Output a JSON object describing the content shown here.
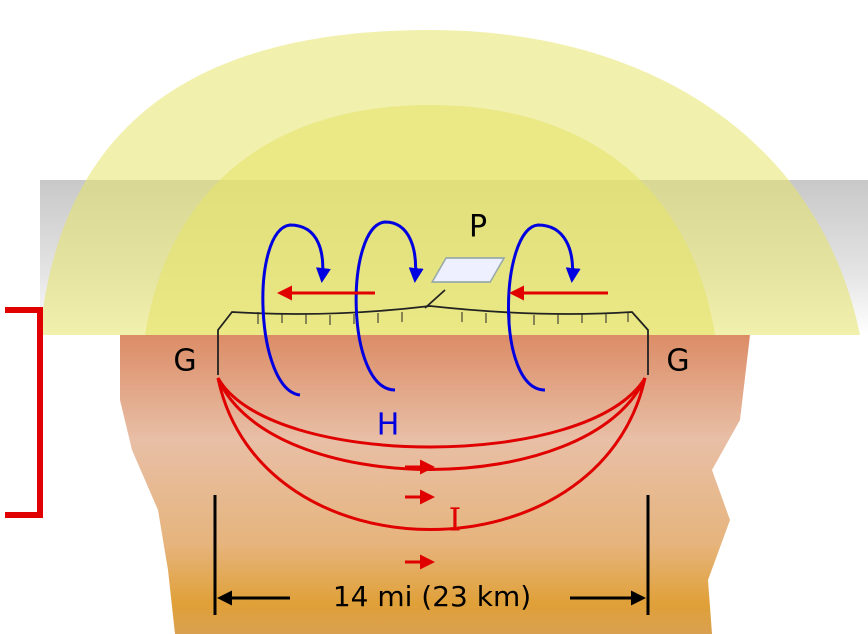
{
  "labels": {
    "transmitter": "P",
    "ground_left": "G",
    "ground_right": "G",
    "magnetic_field": "H",
    "current": "I",
    "distance": "14 mi (23 km)"
  }
}
